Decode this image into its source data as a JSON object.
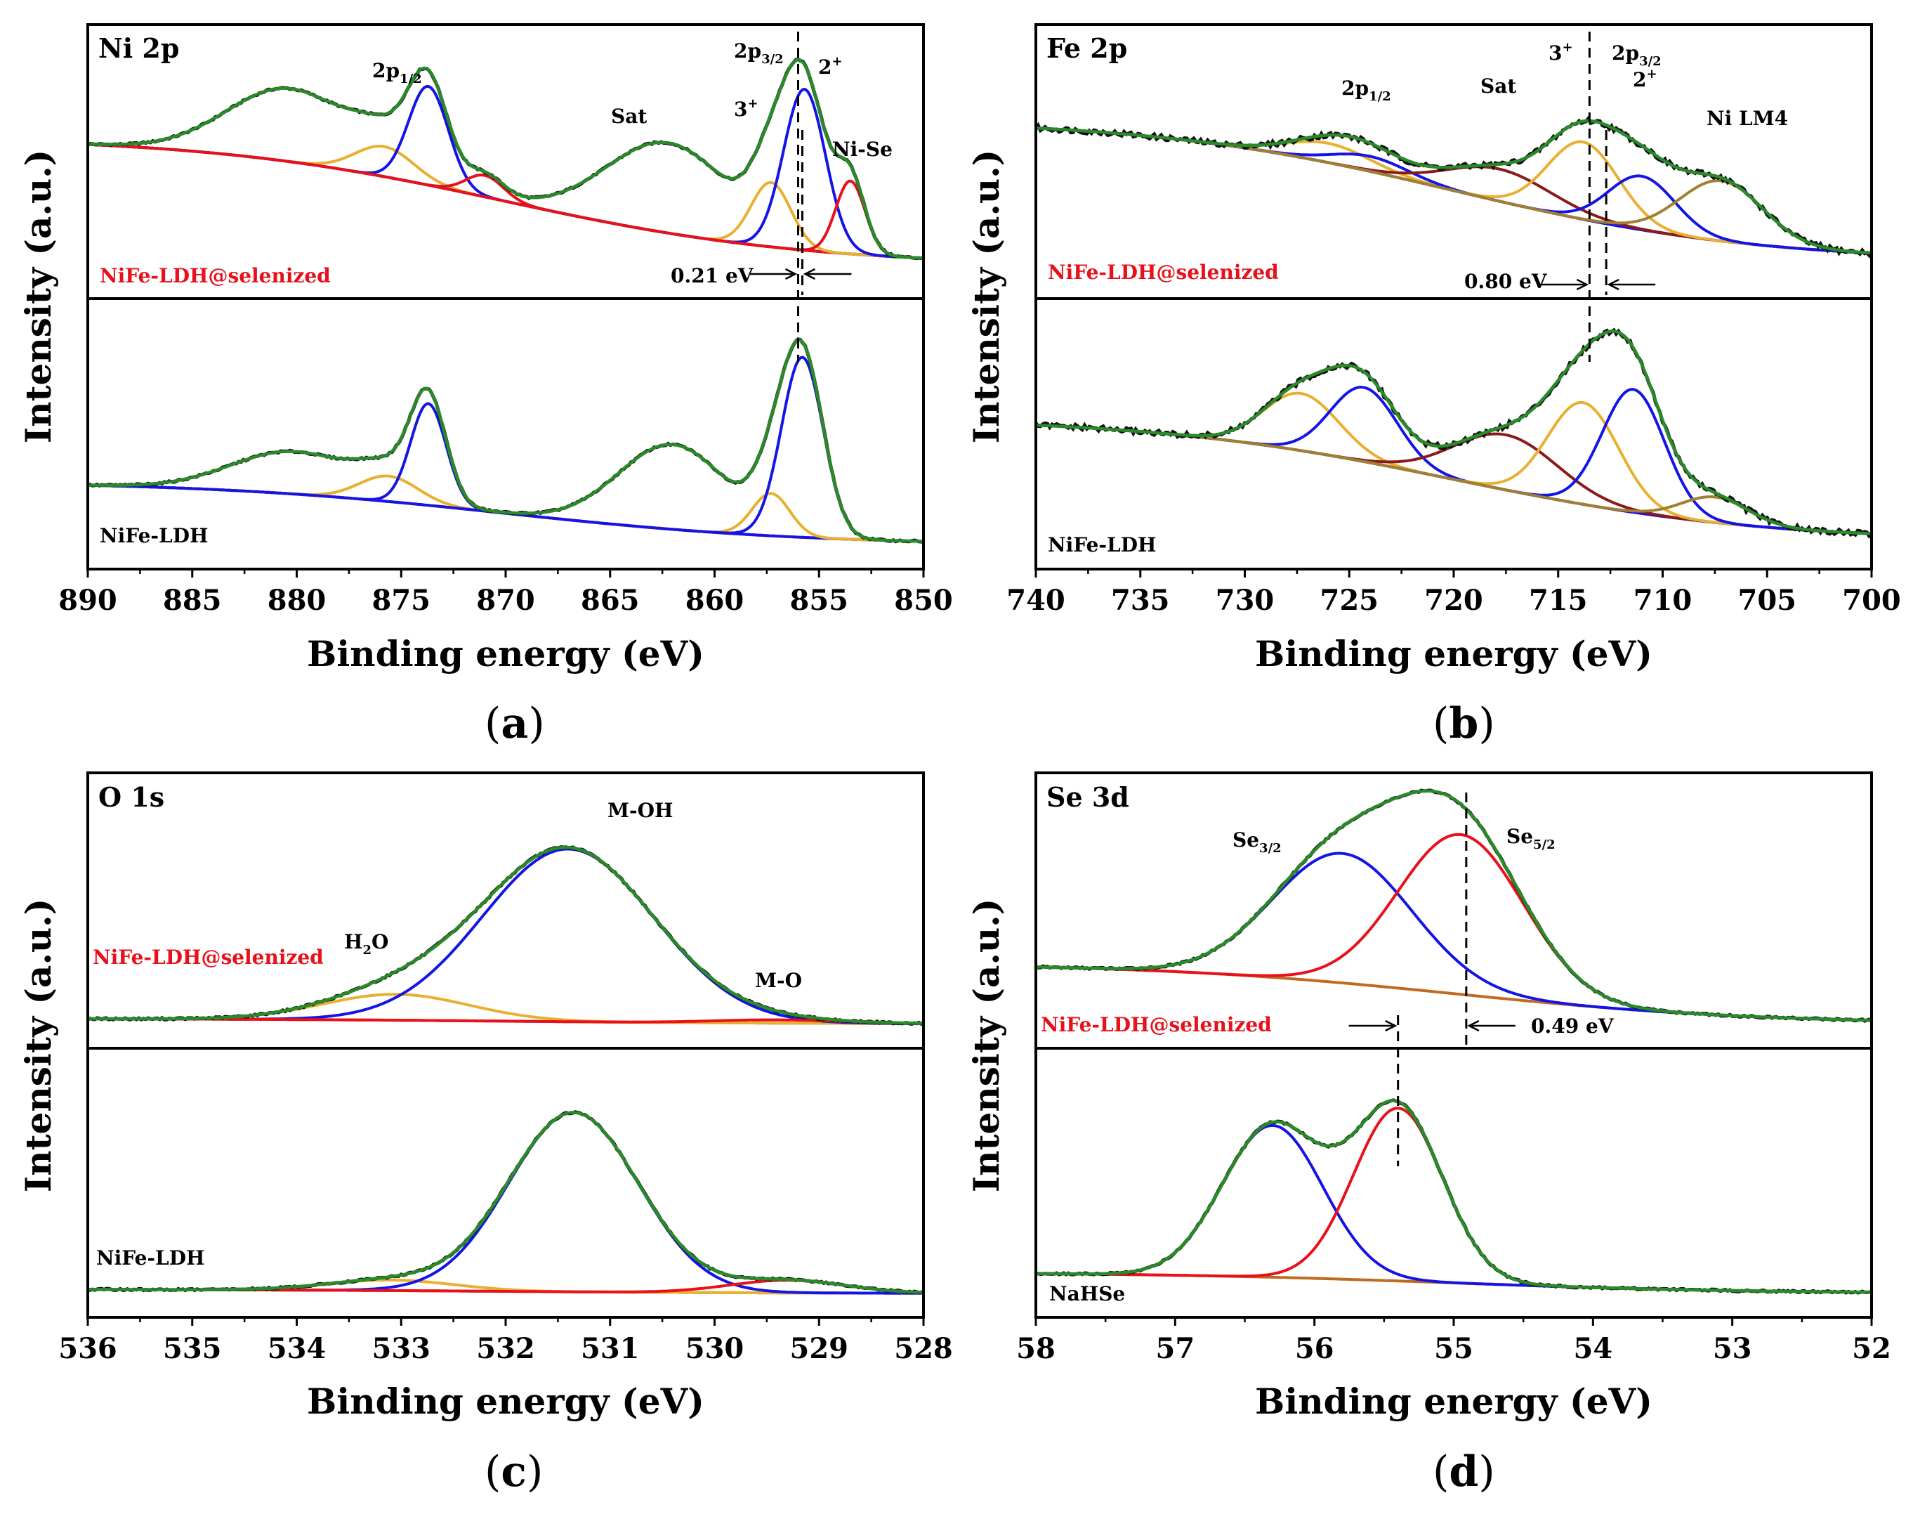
{
  "colors": {
    "raw": "#111111",
    "fit": "#2a8a2a",
    "blue": "#1414e6",
    "orange": "#e8b030",
    "red": "#e8101a",
    "darkred": "#8b1a1a",
    "background": "#c06a20",
    "brown": "#7a4a20",
    "olive": "#a08030"
  },
  "axis_title_x": "Binding energy (eV)",
  "axis_title_y": "Intensity (a.u.)",
  "chart_data": [
    {
      "id": "a",
      "type": "line",
      "caption": "a",
      "title": "Ni 2p",
      "xlabel": "Binding energy (eV)",
      "ylabel": "Intensity (a.u.)",
      "xlim": [
        890,
        850
      ],
      "xticks": [
        "890",
        "885",
        "880",
        "875",
        "870",
        "865",
        "860",
        "855",
        "850"
      ],
      "grid": false,
      "top_sample": "NiFe-LDH@selenized",
      "bottom_sample": "NiFe-LDH",
      "annotations": [
        "2p1/2",
        "Sat",
        "3+",
        "2p3/2",
        "2+",
        "Ni-Se"
      ],
      "shift_label": "0.21 eV",
      "shift_lines": [
        856.0,
        855.8
      ],
      "top": {
        "background": {
          "left": 0.64,
          "right": 0.04
        },
        "components": [
          {
            "color": "orange",
            "center": 875.8,
            "amp": 0.14,
            "width": 1.4
          },
          {
            "color": "blue",
            "center": 873.7,
            "amp": 0.46,
            "width": 0.95
          },
          {
            "color": "red",
            "center": 871.0,
            "amp": 0.1,
            "width": 0.9
          },
          {
            "color": "orange",
            "center": 857.3,
            "amp": 0.3,
            "width": 0.95
          },
          {
            "color": "blue",
            "center": 855.7,
            "amp": 0.75,
            "width": 1.0
          },
          {
            "color": "red",
            "center": 853.5,
            "amp": 0.34,
            "width": 0.7
          },
          {
            "color": "darkred",
            "center": 880.3,
            "amp": 0.34,
            "width": 3.0,
            "fitonly": true
          },
          {
            "color": "darkred",
            "center": 862.2,
            "amp": 0.42,
            "width": 3.0,
            "fitonly": true
          }
        ]
      },
      "bottom": {
        "background": {
          "left": 0.3,
          "right": 0.0
        },
        "components": [
          {
            "color": "orange",
            "center": 875.6,
            "amp": 0.12,
            "width": 1.4
          },
          {
            "color": "blue",
            "center": 873.7,
            "amp": 0.48,
            "width": 0.85
          },
          {
            "color": "orange",
            "center": 857.3,
            "amp": 0.2,
            "width": 0.9
          },
          {
            "color": "blue",
            "center": 855.8,
            "amp": 0.85,
            "width": 1.0
          },
          {
            "color": "darkred",
            "center": 880.1,
            "amp": 0.2,
            "width": 3.0,
            "fitonly": true
          },
          {
            "color": "darkred",
            "center": 862.0,
            "amp": 0.4,
            "width": 2.6,
            "fitonly": true
          }
        ]
      }
    },
    {
      "id": "b",
      "type": "line",
      "caption": "b",
      "title": "Fe 2p",
      "xlabel": "Binding energy (eV)",
      "ylabel": "Intensity (a.u.)",
      "xlim": [
        740,
        700
      ],
      "xticks": [
        "740",
        "735",
        "730",
        "725",
        "720",
        "715",
        "710",
        "705",
        "700"
      ],
      "grid": false,
      "top_sample": "NiFe-LDH@selenized",
      "bottom_sample": "NiFe-LDH",
      "annotations": [
        "2p1/2",
        "Sat",
        "3+",
        "2p3/2",
        "2+",
        "Ni LM4"
      ],
      "shift_label": "0.80 eV",
      "shift_lines": [
        713.5,
        712.7
      ],
      "top": {
        "background": {
          "left": 0.72,
          "right": 0.06
        },
        "components": [
          {
            "color": "orange",
            "center": 726.0,
            "amp": 0.09,
            "width": 2.0
          },
          {
            "color": "blue",
            "center": 724.0,
            "amp": 0.07,
            "width": 1.8
          },
          {
            "color": "darkred",
            "center": 717.8,
            "amp": 0.15,
            "width": 2.5
          },
          {
            "color": "orange",
            "center": 713.8,
            "amp": 0.36,
            "width": 1.7
          },
          {
            "color": "blue",
            "center": 711.0,
            "amp": 0.25,
            "width": 1.6
          },
          {
            "color": "olive",
            "center": 707.2,
            "amp": 0.28,
            "width": 2.0
          }
        ]
      },
      "bottom": {
        "background": {
          "left": 0.6,
          "right": 0.02
        },
        "components": [
          {
            "color": "orange",
            "center": 727.3,
            "amp": 0.27,
            "width": 1.8
          },
          {
            "color": "blue",
            "center": 724.3,
            "amp": 0.35,
            "width": 1.6
          },
          {
            "color": "darkred",
            "center": 717.5,
            "amp": 0.26,
            "width": 2.5
          },
          {
            "color": "orange",
            "center": 713.8,
            "amp": 0.48,
            "width": 1.7
          },
          {
            "color": "blue",
            "center": 711.4,
            "amp": 0.58,
            "width": 1.5
          },
          {
            "color": "olive",
            "center": 707.5,
            "amp": 0.12,
            "width": 1.6
          }
        ]
      }
    },
    {
      "id": "c",
      "type": "line",
      "caption": "c",
      "title": "O 1s",
      "xlabel": "Binding energy (eV)",
      "ylabel": "Intensity (a.u.)",
      "xlim": [
        536,
        528
      ],
      "xticks": [
        "536",
        "535",
        "534",
        "533",
        "532",
        "531",
        "530",
        "529",
        "528"
      ],
      "grid": false,
      "top_sample": "NiFe-LDH@selenized",
      "bottom_sample": "NiFe-LDH",
      "annotations": [
        "M-OH",
        "H2O",
        "M-O"
      ],
      "top": {
        "background": {
          "left": 0.025,
          "right": 0.0
        },
        "components": [
          {
            "color": "orange",
            "center": 533.05,
            "amp": 0.12,
            "width": 0.7
          },
          {
            "color": "blue",
            "center": 531.4,
            "amp": 0.8,
            "width": 0.82
          },
          {
            "color": "red",
            "center": 529.4,
            "amp": 0.015,
            "width": 0.6
          }
        ]
      },
      "bottom": {
        "background": {
          "left": 0.02,
          "right": 0.0
        },
        "components": [
          {
            "color": "orange",
            "center": 533.1,
            "amp": 0.05,
            "width": 0.6
          },
          {
            "color": "blue",
            "center": 531.35,
            "amp": 0.85,
            "width": 0.62
          },
          {
            "color": "red",
            "center": 529.3,
            "amp": 0.06,
            "width": 0.55
          }
        ]
      }
    },
    {
      "id": "d",
      "type": "line",
      "caption": "d",
      "title": "Se 3d",
      "xlabel": "Binding energy (eV)",
      "ylabel": "Intensity (a.u.)",
      "xlim": [
        58,
        52
      ],
      "xticks": [
        "58",
        "57",
        "56",
        "55",
        "54",
        "53",
        "52"
      ],
      "grid": false,
      "top_sample": "NiFe-LDH@selenized",
      "bottom_sample": "NaHSe",
      "annotations": [
        "Se3/2",
        "Se5/2"
      ],
      "shift_label": "0.49 eV",
      "shift_lines": [
        55.4,
        54.91
      ],
      "top": {
        "background": {
          "left": 0.28,
          "right": 0.0
        },
        "components": [
          {
            "color": "blue",
            "center": 55.8,
            "amp": 0.6,
            "width": 0.5
          },
          {
            "color": "red",
            "center": 54.95,
            "amp": 0.74,
            "width": 0.45
          }
        ]
      },
      "bottom": {
        "background": {
          "left": 0.1,
          "right": 0.0
        },
        "components": [
          {
            "color": "blue",
            "center": 56.3,
            "amp": 0.72,
            "width": 0.36
          },
          {
            "color": "red",
            "center": 55.4,
            "amp": 0.82,
            "width": 0.32
          }
        ]
      }
    }
  ]
}
